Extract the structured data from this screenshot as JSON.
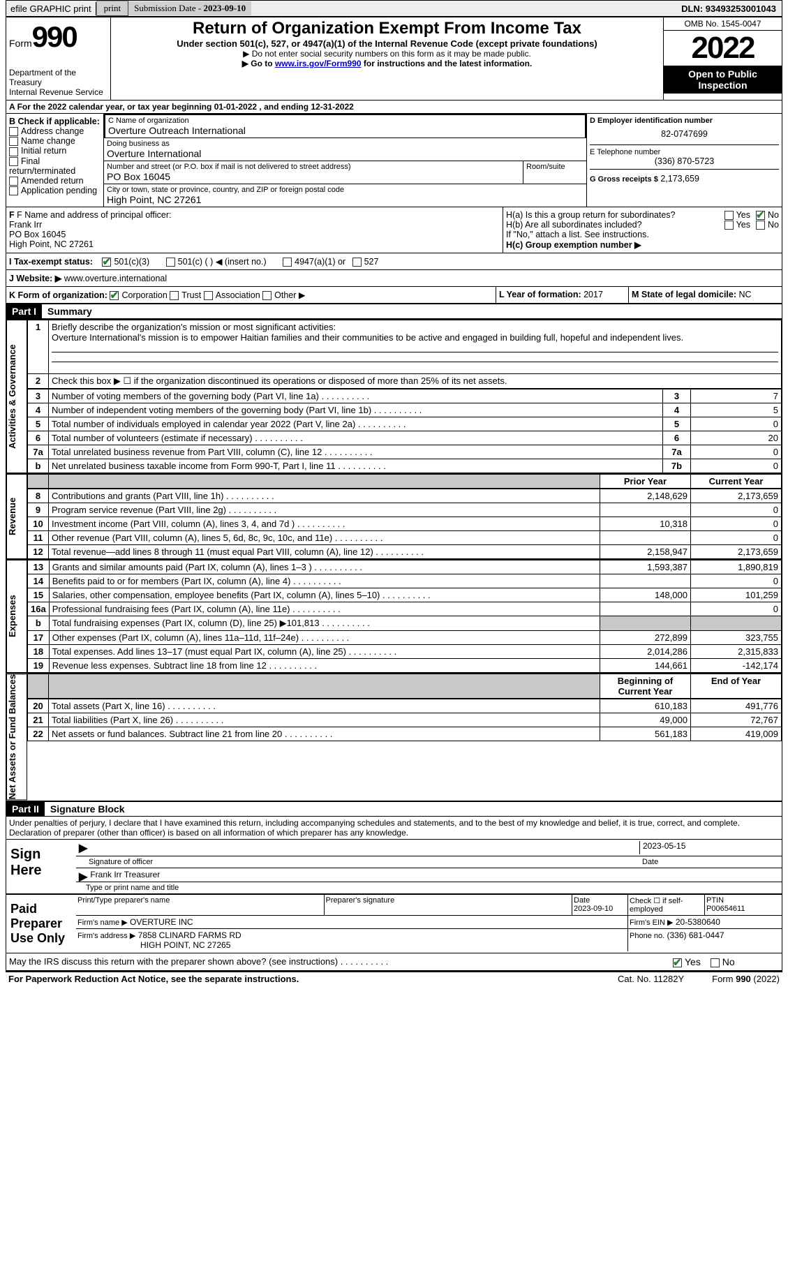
{
  "topbar": {
    "efile": "efile GRAPHIC print",
    "submission_label": "Submission Date -",
    "submission_date": "2023-09-10",
    "dln_label": "DLN:",
    "dln": "93493253001043"
  },
  "header": {
    "form_label": "Form",
    "form_no": "990",
    "dept": "Department of the Treasury",
    "irs": "Internal Revenue Service",
    "title": "Return of Organization Exempt From Income Tax",
    "subtitle": "Under section 501(c), 527, or 4947(a)(1) of the Internal Revenue Code (except private foundations)",
    "instr1": "▶ Do not enter social security numbers on this form as it may be made public.",
    "instr2_pre": "▶ Go to ",
    "instr2_link": "www.irs.gov/Form990",
    "instr2_post": " for instructions and the latest information.",
    "omb": "OMB No. 1545-0047",
    "year": "2022",
    "open": "Open to Public Inspection"
  },
  "line_a": {
    "text_pre": "For the 2022 calendar year, or tax year beginning ",
    "begin": "01-01-2022",
    "mid": " , and ending ",
    "end": "12-31-2022"
  },
  "box_b": {
    "label": "B Check if applicable:",
    "opts": [
      "Address change",
      "Name change",
      "Initial return",
      "Final return/terminated",
      "Amended return",
      "Application pending"
    ]
  },
  "box_c": {
    "name_label": "C Name of organization",
    "name": "Overture Outreach International",
    "dba_label": "Doing business as",
    "dba": "Overture International",
    "addr_label": "Number and street (or P.O. box if mail is not delivered to street address)",
    "room_label": "Room/suite",
    "addr": "PO Box 16045",
    "city_label": "City or town, state or province, country, and ZIP or foreign postal code",
    "city": "High Point, NC  27261"
  },
  "box_d": {
    "label": "D Employer identification number",
    "ein": "82-0747699"
  },
  "box_e": {
    "label": "E Telephone number",
    "phone": "(336) 870-5723"
  },
  "box_g": {
    "label": "G Gross receipts $",
    "amount": "2,173,659"
  },
  "box_f": {
    "label": "F Name and address of principal officer:",
    "name": "Frank Irr",
    "addr1": "PO Box 16045",
    "addr2": "High Point, NC  27261"
  },
  "box_h": {
    "ha": "H(a)  Is this a group return for subordinates?",
    "hb": "H(b)  Are all subordinates included?",
    "hb_note": "If \"No,\" attach a list. See instructions.",
    "hc": "H(c)  Group exemption number ▶",
    "yes": "Yes",
    "no": "No"
  },
  "box_i": {
    "label": "I  Tax-exempt status:",
    "c3": "501(c)(3)",
    "c": "501(c) (   ) ◀ (insert no.)",
    "a1": "4947(a)(1) or",
    "s527": "527"
  },
  "box_j": {
    "label": "J  Website: ▶",
    "url": "www.overture.international"
  },
  "box_k": {
    "label": "K Form of organization:",
    "opts": [
      "Corporation",
      "Trust",
      "Association",
      "Other ▶"
    ]
  },
  "box_l": {
    "label": "L Year of formation:",
    "val": "2017"
  },
  "box_m": {
    "label": "M State of legal domicile:",
    "val": "NC"
  },
  "part1": {
    "hdr": "Part I",
    "title": "Summary",
    "side_act": "Activities & Governance",
    "side_rev": "Revenue",
    "side_exp": "Expenses",
    "side_net": "Net Assets or Fund Balances",
    "l1_label": "Briefly describe the organization's mission or most significant activities:",
    "l1_text": "Overture International's mission is to empower Haitian families and their communities to be active and engaged in building full, hopeful and independent lives.",
    "l2": "Check this box ▶ ☐ if the organization discontinued its operations or disposed of more than 25% of its net assets.",
    "rows_gov": [
      {
        "n": "3",
        "d": "Number of voting members of the governing body (Part VI, line 1a)",
        "box": "3",
        "v": "7"
      },
      {
        "n": "4",
        "d": "Number of independent voting members of the governing body (Part VI, line 1b)",
        "box": "4",
        "v": "5"
      },
      {
        "n": "5",
        "d": "Total number of individuals employed in calendar year 2022 (Part V, line 2a)",
        "box": "5",
        "v": "0"
      },
      {
        "n": "6",
        "d": "Total number of volunteers (estimate if necessary)",
        "box": "6",
        "v": "20"
      },
      {
        "n": "7a",
        "d": "Total unrelated business revenue from Part VIII, column (C), line 12",
        "box": "7a",
        "v": "0"
      },
      {
        "n": "b",
        "d": "Net unrelated business taxable income from Form 990-T, Part I, line 11",
        "box": "7b",
        "v": "0"
      }
    ],
    "col_prior": "Prior Year",
    "col_curr": "Current Year",
    "rows_rev": [
      {
        "n": "8",
        "d": "Contributions and grants (Part VIII, line 1h)",
        "p": "2,148,629",
        "c": "2,173,659"
      },
      {
        "n": "9",
        "d": "Program service revenue (Part VIII, line 2g)",
        "p": "",
        "c": "0"
      },
      {
        "n": "10",
        "d": "Investment income (Part VIII, column (A), lines 3, 4, and 7d )",
        "p": "10,318",
        "c": "0"
      },
      {
        "n": "11",
        "d": "Other revenue (Part VIII, column (A), lines 5, 6d, 8c, 9c, 10c, and 11e)",
        "p": "",
        "c": "0"
      },
      {
        "n": "12",
        "d": "Total revenue—add lines 8 through 11 (must equal Part VIII, column (A), line 12)",
        "p": "2,158,947",
        "c": "2,173,659"
      }
    ],
    "rows_exp": [
      {
        "n": "13",
        "d": "Grants and similar amounts paid (Part IX, column (A), lines 1–3 )",
        "p": "1,593,387",
        "c": "1,890,819"
      },
      {
        "n": "14",
        "d": "Benefits paid to or for members (Part IX, column (A), line 4)",
        "p": "",
        "c": "0"
      },
      {
        "n": "15",
        "d": "Salaries, other compensation, employee benefits (Part IX, column (A), lines 5–10)",
        "p": "148,000",
        "c": "101,259"
      },
      {
        "n": "16a",
        "d": "Professional fundraising fees (Part IX, column (A), line 11e)",
        "p": "",
        "c": "0"
      },
      {
        "n": "b",
        "d": "Total fundraising expenses (Part IX, column (D), line 25) ▶101,813",
        "p": "GREY",
        "c": "GREY"
      },
      {
        "n": "17",
        "d": "Other expenses (Part IX, column (A), lines 11a–11d, 11f–24e)",
        "p": "272,899",
        "c": "323,755"
      },
      {
        "n": "18",
        "d": "Total expenses. Add lines 13–17 (must equal Part IX, column (A), line 25)",
        "p": "2,014,286",
        "c": "2,315,833"
      },
      {
        "n": "19",
        "d": "Revenue less expenses. Subtract line 18 from line 12",
        "p": "144,661",
        "c": "-142,174"
      }
    ],
    "col_begin": "Beginning of Current Year",
    "col_end": "End of Year",
    "rows_net": [
      {
        "n": "20",
        "d": "Total assets (Part X, line 16)",
        "p": "610,183",
        "c": "491,776"
      },
      {
        "n": "21",
        "d": "Total liabilities (Part X, line 26)",
        "p": "49,000",
        "c": "72,767"
      },
      {
        "n": "22",
        "d": "Net assets or fund balances. Subtract line 21 from line 20",
        "p": "561,183",
        "c": "419,009"
      }
    ]
  },
  "part2": {
    "hdr": "Part II",
    "title": "Signature Block",
    "decl": "Under penalties of perjury, I declare that I have examined this return, including accompanying schedules and statements, and to the best of my knowledge and belief, it is true, correct, and complete. Declaration of preparer (other than officer) is based on all information of which preparer has any knowledge.",
    "sign_here": "Sign Here",
    "sig_officer": "Signature of officer",
    "sig_date_label": "Date",
    "sig_date": "2023-05-15",
    "name_title": "Frank Irr  Treasurer",
    "type_name": "Type or print name and title",
    "paid": "Paid Preparer Use Only",
    "prep_name_label": "Print/Type preparer's name",
    "prep_sig_label": "Preparer's signature",
    "date_label": "Date",
    "date_val": "2023-09-10",
    "check_self": "Check ☐ if self-employed",
    "ptin_label": "PTIN",
    "ptin": "P00654611",
    "firm_name_label": "Firm's name    ▶",
    "firm_name": "OVERTURE INC",
    "firm_ein_label": "Firm's EIN ▶",
    "firm_ein": "20-5380640",
    "firm_addr_label": "Firm's address ▶",
    "firm_addr1": "7858 CLINARD FARMS RD",
    "firm_addr2": "HIGH POINT, NC  27265",
    "firm_phone_label": "Phone no.",
    "firm_phone": "(336) 681-0447",
    "may_irs": "May the IRS discuss this return with the preparer shown above? (see instructions)",
    "yes": "Yes",
    "no": "No"
  },
  "footer": {
    "pra": "For Paperwork Reduction Act Notice, see the separate instructions.",
    "cat": "Cat. No. 11282Y",
    "form": "Form 990 (2022)"
  }
}
